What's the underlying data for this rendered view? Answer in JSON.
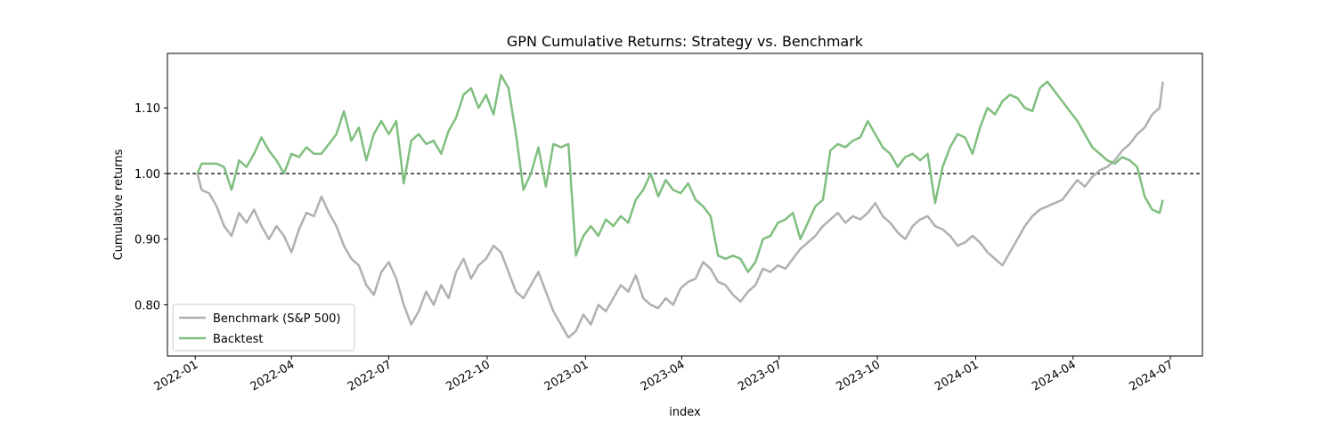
{
  "chart_data": {
    "type": "line",
    "title": "GPN Cumulative Returns: Strategy vs. Benchmark",
    "xlabel": "index",
    "ylabel": "Cumulative returns",
    "xlim": [
      "2021-12-06",
      "2024-07-31"
    ],
    "ylim": [
      0.722,
      1.183
    ],
    "x_ticks": [
      "2022-01",
      "2022-04",
      "2022-07",
      "2022-10",
      "2023-01",
      "2023-04",
      "2023-07",
      "2023-10",
      "2024-01",
      "2024-04",
      "2024-07"
    ],
    "x_tick_dates": [
      "2022-01-01",
      "2022-04-01",
      "2022-07-01",
      "2022-10-01",
      "2023-01-01",
      "2023-04-01",
      "2023-07-01",
      "2023-10-01",
      "2024-01-01",
      "2024-04-01",
      "2024-07-01"
    ],
    "y_ticks": [
      "0.80",
      "0.90",
      "1.00",
      "1.10"
    ],
    "y_tick_values": [
      0.8,
      0.9,
      1.0,
      1.1
    ],
    "reference_line": {
      "y": 1.0,
      "style": "dashed",
      "color": "#000000"
    },
    "grid": false,
    "legend": {
      "location": "lower left"
    },
    "series": [
      {
        "name": "Benchmark (S&P 500)",
        "color": "#b0b0b0",
        "points": [
          [
            "2022-01-03",
            1.0
          ],
          [
            "2022-01-07",
            0.975
          ],
          [
            "2022-01-14",
            0.97
          ],
          [
            "2022-01-21",
            0.95
          ],
          [
            "2022-01-28",
            0.92
          ],
          [
            "2022-02-04",
            0.905
          ],
          [
            "2022-02-11",
            0.94
          ],
          [
            "2022-02-18",
            0.925
          ],
          [
            "2022-02-25",
            0.945
          ],
          [
            "2022-03-04",
            0.92
          ],
          [
            "2022-03-11",
            0.9
          ],
          [
            "2022-03-18",
            0.92
          ],
          [
            "2022-03-25",
            0.905
          ],
          [
            "2022-04-01",
            0.88
          ],
          [
            "2022-04-08",
            0.915
          ],
          [
            "2022-04-15",
            0.94
          ],
          [
            "2022-04-22",
            0.935
          ],
          [
            "2022-04-29",
            0.965
          ],
          [
            "2022-05-06",
            0.94
          ],
          [
            "2022-05-13",
            0.92
          ],
          [
            "2022-05-20",
            0.89
          ],
          [
            "2022-05-27",
            0.87
          ],
          [
            "2022-06-03",
            0.86
          ],
          [
            "2022-06-10",
            0.83
          ],
          [
            "2022-06-17",
            0.815
          ],
          [
            "2022-06-24",
            0.85
          ],
          [
            "2022-07-01",
            0.865
          ],
          [
            "2022-07-08",
            0.84
          ],
          [
            "2022-07-15",
            0.8
          ],
          [
            "2022-07-22",
            0.77
          ],
          [
            "2022-07-29",
            0.79
          ],
          [
            "2022-08-05",
            0.82
          ],
          [
            "2022-08-12",
            0.8
          ],
          [
            "2022-08-19",
            0.83
          ],
          [
            "2022-08-26",
            0.81
          ],
          [
            "2022-09-02",
            0.85
          ],
          [
            "2022-09-09",
            0.87
          ],
          [
            "2022-09-16",
            0.84
          ],
          [
            "2022-09-23",
            0.86
          ],
          [
            "2022-09-30",
            0.87
          ],
          [
            "2022-10-07",
            0.89
          ],
          [
            "2022-10-14",
            0.88
          ],
          [
            "2022-10-21",
            0.85
          ],
          [
            "2022-10-28",
            0.82
          ],
          [
            "2022-11-04",
            0.81
          ],
          [
            "2022-11-11",
            0.83
          ],
          [
            "2022-11-18",
            0.85
          ],
          [
            "2022-11-25",
            0.82
          ],
          [
            "2022-12-02",
            0.79
          ],
          [
            "2022-12-09",
            0.77
          ],
          [
            "2022-12-16",
            0.75
          ],
          [
            "2022-12-23",
            0.76
          ],
          [
            "2022-12-30",
            0.785
          ],
          [
            "2023-01-06",
            0.77
          ],
          [
            "2023-01-13",
            0.8
          ],
          [
            "2023-01-20",
            0.79
          ],
          [
            "2023-01-27",
            0.81
          ],
          [
            "2023-02-03",
            0.83
          ],
          [
            "2023-02-10",
            0.82
          ],
          [
            "2023-02-17",
            0.845
          ],
          [
            "2023-02-24",
            0.81
          ],
          [
            "2023-03-03",
            0.8
          ],
          [
            "2023-03-10",
            0.795
          ],
          [
            "2023-03-17",
            0.81
          ],
          [
            "2023-03-24",
            0.8
          ],
          [
            "2023-03-31",
            0.825
          ],
          [
            "2023-04-07",
            0.835
          ],
          [
            "2023-04-14",
            0.84
          ],
          [
            "2023-04-21",
            0.865
          ],
          [
            "2023-04-28",
            0.855
          ],
          [
            "2023-05-05",
            0.835
          ],
          [
            "2023-05-12",
            0.83
          ],
          [
            "2023-05-19",
            0.815
          ],
          [
            "2023-05-26",
            0.805
          ],
          [
            "2023-06-02",
            0.82
          ],
          [
            "2023-06-09",
            0.83
          ],
          [
            "2023-06-16",
            0.855
          ],
          [
            "2023-06-23",
            0.85
          ],
          [
            "2023-06-30",
            0.86
          ],
          [
            "2023-07-07",
            0.855
          ],
          [
            "2023-07-14",
            0.87
          ],
          [
            "2023-07-21",
            0.885
          ],
          [
            "2023-07-28",
            0.895
          ],
          [
            "2023-08-04",
            0.905
          ],
          [
            "2023-08-11",
            0.92
          ],
          [
            "2023-08-18",
            0.93
          ],
          [
            "2023-08-25",
            0.94
          ],
          [
            "2023-09-01",
            0.925
          ],
          [
            "2023-09-08",
            0.935
          ],
          [
            "2023-09-15",
            0.93
          ],
          [
            "2023-09-22",
            0.94
          ],
          [
            "2023-09-29",
            0.955
          ],
          [
            "2023-10-06",
            0.935
          ],
          [
            "2023-10-13",
            0.925
          ],
          [
            "2023-10-20",
            0.91
          ],
          [
            "2023-10-27",
            0.9
          ],
          [
            "2023-11-03",
            0.92
          ],
          [
            "2023-11-10",
            0.93
          ],
          [
            "2023-11-17",
            0.935
          ],
          [
            "2023-11-24",
            0.92
          ],
          [
            "2023-12-01",
            0.915
          ],
          [
            "2023-12-08",
            0.905
          ],
          [
            "2023-12-15",
            0.89
          ],
          [
            "2023-12-22",
            0.895
          ],
          [
            "2023-12-29",
            0.905
          ],
          [
            "2024-01-05",
            0.895
          ],
          [
            "2024-01-12",
            0.88
          ],
          [
            "2024-01-19",
            0.87
          ],
          [
            "2024-01-26",
            0.86
          ],
          [
            "2024-02-02",
            0.88
          ],
          [
            "2024-02-09",
            0.9
          ],
          [
            "2024-02-16",
            0.92
          ],
          [
            "2024-02-23",
            0.935
          ],
          [
            "2024-03-01",
            0.945
          ],
          [
            "2024-03-08",
            0.95
          ],
          [
            "2024-03-15",
            0.955
          ],
          [
            "2024-03-22",
            0.96
          ],
          [
            "2024-03-29",
            0.975
          ],
          [
            "2024-04-05",
            0.99
          ],
          [
            "2024-04-12",
            0.98
          ],
          [
            "2024-04-19",
            0.995
          ],
          [
            "2024-04-26",
            1.005
          ],
          [
            "2024-05-03",
            1.01
          ],
          [
            "2024-05-10",
            1.02
          ],
          [
            "2024-05-17",
            1.035
          ],
          [
            "2024-05-24",
            1.045
          ],
          [
            "2024-05-31",
            1.06
          ],
          [
            "2024-06-07",
            1.07
          ],
          [
            "2024-06-14",
            1.09
          ],
          [
            "2024-06-21",
            1.1
          ],
          [
            "2024-06-24",
            1.14
          ]
        ]
      },
      {
        "name": "Backtest",
        "color": "#7fbf7f",
        "points": [
          [
            "2022-01-03",
            1.0
          ],
          [
            "2022-01-07",
            1.015
          ],
          [
            "2022-01-14",
            1.015
          ],
          [
            "2022-01-21",
            1.015
          ],
          [
            "2022-01-28",
            1.01
          ],
          [
            "2022-02-04",
            0.975
          ],
          [
            "2022-02-11",
            1.02
          ],
          [
            "2022-02-18",
            1.01
          ],
          [
            "2022-02-25",
            1.03
          ],
          [
            "2022-03-04",
            1.055
          ],
          [
            "2022-03-11",
            1.035
          ],
          [
            "2022-03-18",
            1.02
          ],
          [
            "2022-03-25",
            1.0
          ],
          [
            "2022-04-01",
            1.03
          ],
          [
            "2022-04-08",
            1.025
          ],
          [
            "2022-04-15",
            1.04
          ],
          [
            "2022-04-22",
            1.03
          ],
          [
            "2022-04-29",
            1.03
          ],
          [
            "2022-05-06",
            1.045
          ],
          [
            "2022-05-13",
            1.06
          ],
          [
            "2022-05-20",
            1.095
          ],
          [
            "2022-05-27",
            1.05
          ],
          [
            "2022-06-03",
            1.07
          ],
          [
            "2022-06-10",
            1.02
          ],
          [
            "2022-06-17",
            1.06
          ],
          [
            "2022-06-24",
            1.08
          ],
          [
            "2022-07-01",
            1.06
          ],
          [
            "2022-07-08",
            1.08
          ],
          [
            "2022-07-15",
            0.985
          ],
          [
            "2022-07-22",
            1.05
          ],
          [
            "2022-07-29",
            1.06
          ],
          [
            "2022-08-05",
            1.045
          ],
          [
            "2022-08-12",
            1.05
          ],
          [
            "2022-08-19",
            1.03
          ],
          [
            "2022-08-26",
            1.065
          ],
          [
            "2022-09-02",
            1.085
          ],
          [
            "2022-09-09",
            1.12
          ],
          [
            "2022-09-16",
            1.13
          ],
          [
            "2022-09-23",
            1.1
          ],
          [
            "2022-09-30",
            1.12
          ],
          [
            "2022-10-07",
            1.09
          ],
          [
            "2022-10-14",
            1.15
          ],
          [
            "2022-10-21",
            1.13
          ],
          [
            "2022-10-28",
            1.06
          ],
          [
            "2022-11-04",
            0.975
          ],
          [
            "2022-11-11",
            1.0
          ],
          [
            "2022-11-18",
            1.04
          ],
          [
            "2022-11-25",
            0.98
          ],
          [
            "2022-12-02",
            1.045
          ],
          [
            "2022-12-09",
            1.04
          ],
          [
            "2022-12-16",
            1.045
          ],
          [
            "2022-12-23",
            0.875
          ],
          [
            "2022-12-30",
            0.905
          ],
          [
            "2023-01-06",
            0.92
          ],
          [
            "2023-01-13",
            0.905
          ],
          [
            "2023-01-20",
            0.93
          ],
          [
            "2023-01-27",
            0.92
          ],
          [
            "2023-02-03",
            0.935
          ],
          [
            "2023-02-10",
            0.925
          ],
          [
            "2023-02-17",
            0.96
          ],
          [
            "2023-02-24",
            0.975
          ],
          [
            "2023-03-03",
            1.0
          ],
          [
            "2023-03-10",
            0.965
          ],
          [
            "2023-03-17",
            0.99
          ],
          [
            "2023-03-24",
            0.975
          ],
          [
            "2023-03-31",
            0.97
          ],
          [
            "2023-04-07",
            0.985
          ],
          [
            "2023-04-14",
            0.96
          ],
          [
            "2023-04-21",
            0.95
          ],
          [
            "2023-04-28",
            0.935
          ],
          [
            "2023-05-05",
            0.875
          ],
          [
            "2023-05-12",
            0.87
          ],
          [
            "2023-05-19",
            0.875
          ],
          [
            "2023-05-26",
            0.87
          ],
          [
            "2023-06-02",
            0.85
          ],
          [
            "2023-06-09",
            0.865
          ],
          [
            "2023-06-16",
            0.9
          ],
          [
            "2023-06-23",
            0.905
          ],
          [
            "2023-06-30",
            0.925
          ],
          [
            "2023-07-07",
            0.93
          ],
          [
            "2023-07-14",
            0.94
          ],
          [
            "2023-07-21",
            0.9
          ],
          [
            "2023-07-28",
            0.925
          ],
          [
            "2023-08-04",
            0.95
          ],
          [
            "2023-08-11",
            0.96
          ],
          [
            "2023-08-18",
            1.035
          ],
          [
            "2023-08-25",
            1.045
          ],
          [
            "2023-09-01",
            1.04
          ],
          [
            "2023-09-08",
            1.05
          ],
          [
            "2023-09-15",
            1.055
          ],
          [
            "2023-09-22",
            1.08
          ],
          [
            "2023-09-29",
            1.06
          ],
          [
            "2023-10-06",
            1.04
          ],
          [
            "2023-10-13",
            1.03
          ],
          [
            "2023-10-20",
            1.01
          ],
          [
            "2023-10-27",
            1.025
          ],
          [
            "2023-11-03",
            1.03
          ],
          [
            "2023-11-10",
            1.02
          ],
          [
            "2023-11-17",
            1.03
          ],
          [
            "2023-11-24",
            0.955
          ],
          [
            "2023-12-01",
            1.01
          ],
          [
            "2023-12-08",
            1.04
          ],
          [
            "2023-12-15",
            1.06
          ],
          [
            "2023-12-22",
            1.055
          ],
          [
            "2023-12-29",
            1.03
          ],
          [
            "2024-01-05",
            1.07
          ],
          [
            "2024-01-12",
            1.1
          ],
          [
            "2024-01-19",
            1.09
          ],
          [
            "2024-01-26",
            1.11
          ],
          [
            "2024-02-02",
            1.12
          ],
          [
            "2024-02-09",
            1.115
          ],
          [
            "2024-02-16",
            1.1
          ],
          [
            "2024-02-23",
            1.095
          ],
          [
            "2024-03-01",
            1.13
          ],
          [
            "2024-03-08",
            1.14
          ],
          [
            "2024-03-15",
            1.125
          ],
          [
            "2024-03-22",
            1.11
          ],
          [
            "2024-03-29",
            1.095
          ],
          [
            "2024-04-05",
            1.08
          ],
          [
            "2024-04-12",
            1.06
          ],
          [
            "2024-04-19",
            1.04
          ],
          [
            "2024-04-26",
            1.03
          ],
          [
            "2024-05-03",
            1.02
          ],
          [
            "2024-05-10",
            1.015
          ],
          [
            "2024-05-17",
            1.025
          ],
          [
            "2024-05-24",
            1.02
          ],
          [
            "2024-05-31",
            1.01
          ],
          [
            "2024-06-07",
            0.965
          ],
          [
            "2024-06-14",
            0.945
          ],
          [
            "2024-06-21",
            0.94
          ],
          [
            "2024-06-24",
            0.96
          ]
        ]
      }
    ]
  }
}
